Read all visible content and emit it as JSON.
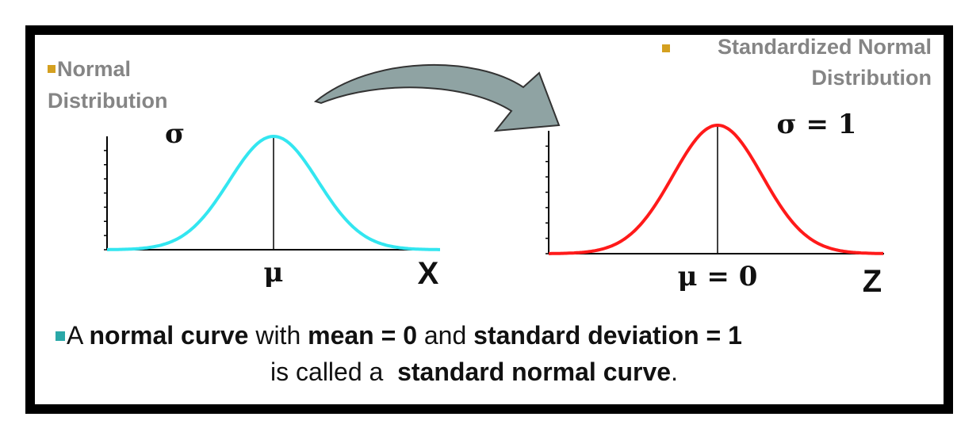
{
  "left_panel": {
    "label_lines": [
      "Normal",
      "Distribution"
    ],
    "sigma_label": "σ",
    "mean_label": "μ",
    "axis_label": "X",
    "curve_color": "#33e6f0"
  },
  "right_panel": {
    "label_lines": [
      "Standardized Normal",
      "Distribution"
    ],
    "sigma_label": "σ = 1",
    "mean_label": "μ = 0",
    "axis_label": "Z",
    "curve_color": "#ff1a1a"
  },
  "caption": {
    "lines": [
      [
        {
          "text": "A ",
          "bold": false
        },
        {
          "text": "normal curve",
          "bold": true
        },
        {
          "text": " with ",
          "bold": false
        },
        {
          "text": "mean = 0",
          "bold": true
        },
        {
          "text": " and ",
          "bold": false
        },
        {
          "text": "standard deviation = 1",
          "bold": true
        }
      ],
      [
        {
          "text": "is called a  ",
          "bold": false
        },
        {
          "text": "standard normal curve",
          "bold": true
        },
        {
          "text": ".",
          "bold": false
        }
      ]
    ]
  }
}
